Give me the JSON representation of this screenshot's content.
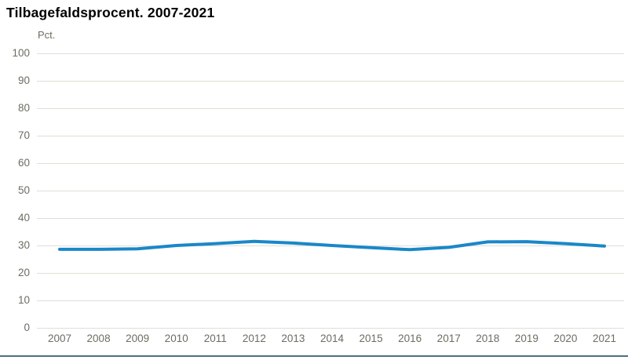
{
  "title": "Tilbagefaldsprocent. 2007-2021",
  "chart_data": {
    "type": "line",
    "title": "Tilbagefaldsprocent. 2007-2021",
    "ylabel": "Pct.",
    "xlabel": "",
    "categories": [
      "2007",
      "2008",
      "2009",
      "2010",
      "2011",
      "2012",
      "2013",
      "2014",
      "2015",
      "2016",
      "2017",
      "2018",
      "2019",
      "2020",
      "2021"
    ],
    "values": [
      28.6,
      28.6,
      28.8,
      30.0,
      30.7,
      31.5,
      30.9,
      30.0,
      29.2,
      28.5,
      29.3,
      31.3,
      31.4,
      30.7,
      29.8
    ],
    "ylim": [
      0,
      100
    ],
    "ytick_step": 10,
    "grid": true,
    "legend": "none"
  },
  "colors": {
    "series_line": "#1a87c9",
    "gridline": "#e0ded5",
    "axis_text": "#6d6d62",
    "title_text": "#000000",
    "bottom_rule": "#4e6f7e"
  }
}
